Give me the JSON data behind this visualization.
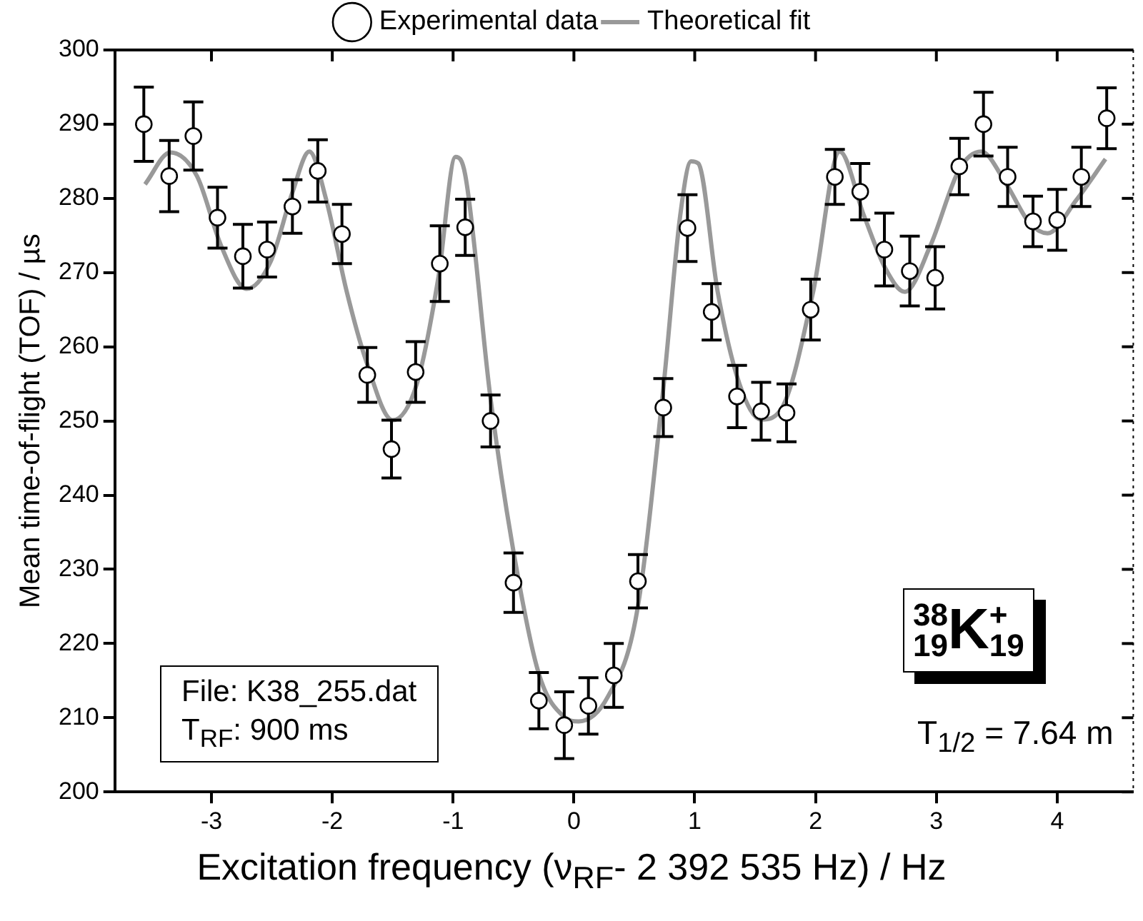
{
  "chart_data": {
    "type": "scatter",
    "xlabel": "Excitation frequency (ν$_{RF}$- 2 392 535 Hz) / Hz",
    "ylabel": "Mean time-of-flight (TOF) / µs",
    "xlim": [
      -3.8,
      4.63
    ],
    "xticks": [
      -3,
      -2,
      -1,
      0,
      1,
      2,
      3,
      4
    ],
    "ylim": [
      200,
      300
    ],
    "yticks": [
      200,
      210,
      220,
      230,
      240,
      250,
      260,
      270,
      280,
      290,
      300
    ],
    "grid": false,
    "legend": "top",
    "marker": "circle",
    "series": [
      {
        "name": "Experimental data",
        "type": "scatter",
        "color": "#000000",
        "x": [
          -3.56,
          -3.35,
          -3.15,
          -2.95,
          -2.74,
          -2.54,
          -2.33,
          -2.12,
          -1.92,
          -1.71,
          -1.51,
          -1.31,
          -1.11,
          -0.9,
          -0.69,
          -0.5,
          -0.29,
          -0.08,
          0.12,
          0.33,
          0.53,
          0.74,
          0.94,
          1.14,
          1.35,
          1.55,
          1.76,
          1.96,
          2.16,
          2.37,
          2.57,
          2.78,
          2.99,
          3.19,
          3.39,
          3.59,
          3.8,
          4.0,
          4.2,
          4.41
        ],
        "values": [
          290.0,
          283.0,
          288.4,
          277.4,
          272.2,
          273.1,
          278.9,
          283.7,
          275.2,
          256.2,
          246.2,
          256.6,
          271.2,
          276.1,
          250.0,
          228.2,
          212.3,
          209.0,
          211.6,
          215.7,
          228.4,
          251.8,
          276.0,
          264.7,
          253.3,
          251.3,
          251.1,
          265.0,
          282.9,
          280.9,
          273.1,
          270.2,
          269.3,
          284.3,
          290.0,
          282.9,
          276.9,
          277.1,
          282.9,
          290.8
        ],
        "errors": [
          5.0,
          4.8,
          4.6,
          4.1,
          4.3,
          3.7,
          3.6,
          4.2,
          4.0,
          3.7,
          3.9,
          4.1,
          5.1,
          3.8,
          3.5,
          4.0,
          3.8,
          4.5,
          3.8,
          4.3,
          3.6,
          3.9,
          4.5,
          3.8,
          4.2,
          3.9,
          3.9,
          4.1,
          3.7,
          3.8,
          4.9,
          4.7,
          4.2,
          3.8,
          4.3,
          4.0,
          3.4,
          4.1,
          4.0,
          4.1
        ]
      },
      {
        "name": "Theoretical fit",
        "type": "line",
        "color": "#999999",
        "marker": "none",
        "line_style": "solid",
        "x": [
          -3.55,
          -3.34,
          -3.12,
          -2.92,
          -2.71,
          -2.51,
          -2.33,
          -2.19,
          -2.05,
          -1.88,
          -1.72,
          -1.5,
          -1.3,
          -1.12,
          -0.98,
          -0.9,
          -0.69,
          -0.5,
          -0.29,
          -0.08,
          0.04,
          0.28,
          0.52,
          0.74,
          0.88,
          0.97,
          1.03,
          1.19,
          1.37,
          1.55,
          1.73,
          1.98,
          2.2,
          2.4,
          2.58,
          2.74,
          2.95,
          3.19,
          3.37,
          3.58,
          3.77,
          3.92,
          4.16,
          4.4
        ],
        "values": [
          281.9,
          286.2,
          283.0,
          273.6,
          267.8,
          271.5,
          280.8,
          286.3,
          279.8,
          267.4,
          258.1,
          250.1,
          255.0,
          269.5,
          285.6,
          283.2,
          253.0,
          232.4,
          215.9,
          210.1,
          209.5,
          212.8,
          224.1,
          254.4,
          277.7,
          285.0,
          284.7,
          267.4,
          255.0,
          250.2,
          252.0,
          267.4,
          286.3,
          277.7,
          270.5,
          267.4,
          273.6,
          283.9,
          286.3,
          281.9,
          276.7,
          275.3,
          279.8,
          285.3
        ]
      }
    ],
    "annotations": [
      "File: K38_255.dat\nT$_{RF}$: 900 ms",
      "$^{38}$$_{19}$K$^{+}$$_{19}$",
      "T$_{1/2}$ = 7.64 m"
    ]
  }
}
